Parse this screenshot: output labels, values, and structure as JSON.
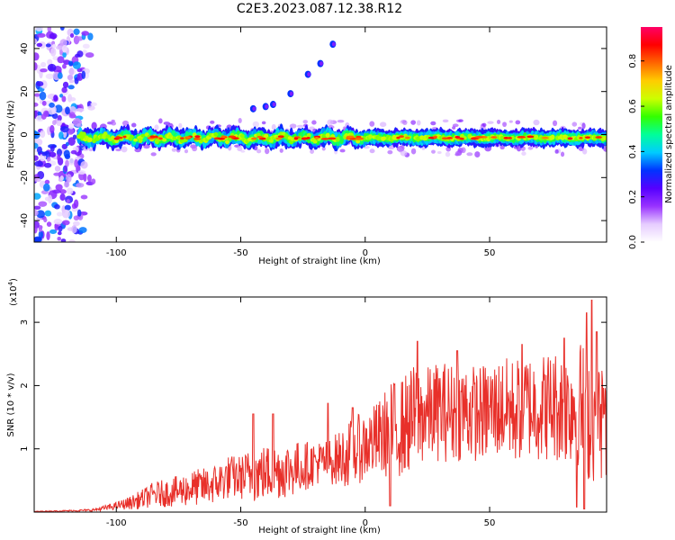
{
  "title": "C2E3.2023.087.12.38.R12",
  "chart_data": [
    {
      "type": "heatmap",
      "xlabel": "Height of straight line (km)",
      "ylabel": "Frequency (Hz)",
      "xlim": [
        -133,
        97
      ],
      "ylim": [
        -50,
        50
      ],
      "x_ticks": [
        -100,
        -50,
        0,
        50
      ],
      "y_ticks": [
        -40,
        -20,
        0,
        20,
        40
      ],
      "x_tick_labels": [
        "-100",
        "-50",
        "0",
        "50"
      ],
      "y_tick_labels": [
        "-40",
        "-20",
        "0",
        "20",
        "40"
      ],
      "grid": false,
      "colorbar": {
        "label": "Normalized spectral amplitude",
        "range": [
          0,
          0.95
        ],
        "ticks": [
          0.0,
          0.2,
          0.4,
          0.6,
          0.8
        ],
        "tick_labels": [
          "0.0",
          "0.2",
          "0.4",
          "0.6",
          "0.8"
        ],
        "colormap": [
          "#ffffff",
          "#e6ccff",
          "#9933ff",
          "#5500ff",
          "#0033ff",
          "#00ccff",
          "#00ff99",
          "#33ff00",
          "#ccff00",
          "#ffcc00",
          "#ff6600",
          "#ff0000",
          "#ff0066"
        ]
      },
      "features": {
        "center_band_frequency_hz": -1.5,
        "band_half_width_hz": 4,
        "band_x_range": [
          -115,
          97
        ],
        "noise_region_x_range": [
          -133,
          -108
        ],
        "rising_trace_points": [
          [
            -45,
            12
          ],
          [
            -40,
            13
          ],
          [
            -37,
            14
          ],
          [
            -30,
            19
          ],
          [
            -23,
            28
          ],
          [
            -18,
            33
          ],
          [
            -13,
            42
          ]
        ]
      }
    },
    {
      "type": "line",
      "xlabel": "Height of straight line (km)",
      "ylabel": "SNR (10 * v/v)",
      "y_multiplier": "(x10",
      "y_multiplier_exponent": "4",
      "xlim": [
        -133,
        97
      ],
      "ylim": [
        0,
        3.4
      ],
      "x_ticks": [
        -100,
        -50,
        0,
        50
      ],
      "y_ticks": [
        1,
        2,
        3
      ],
      "x_tick_labels": [
        "-100",
        "-50",
        "0",
        "50"
      ],
      "y_tick_labels": [
        "1",
        "2",
        "3"
      ],
      "grid": false,
      "line_color": "#e8302a",
      "series": [
        {
          "x": [
            -133,
            -120,
            -110,
            -105,
            -100,
            -95,
            -90,
            -85,
            -80,
            -75,
            -70,
            -65,
            -60,
            -55,
            -50,
            -45,
            -40,
            -35,
            -30,
            -25,
            -20,
            -15,
            -10,
            -5,
            0,
            5,
            10,
            15,
            20,
            25,
            30,
            35,
            40,
            45,
            50,
            55,
            60,
            65,
            70,
            75,
            80,
            85,
            90,
            97
          ],
          "values": [
            0.01,
            0.02,
            0.03,
            0.06,
            0.1,
            0.14,
            0.2,
            0.28,
            0.3,
            0.33,
            0.38,
            0.4,
            0.45,
            0.55,
            0.55,
            0.6,
            0.62,
            0.65,
            0.68,
            0.72,
            0.78,
            0.8,
            0.85,
            0.95,
            1.05,
            1.15,
            1.3,
            1.35,
            1.5,
            1.55,
            1.6,
            1.58,
            1.62,
            1.55,
            1.6,
            1.65,
            1.6,
            1.7,
            1.65,
            1.7,
            1.65,
            1.75,
            1.55,
            1.4
          ],
          "amplitude": [
            0.005,
            0.01,
            0.02,
            0.04,
            0.06,
            0.1,
            0.15,
            0.2,
            0.22,
            0.25,
            0.28,
            0.3,
            0.32,
            0.35,
            0.35,
            0.45,
            0.45,
            0.45,
            0.45,
            0.4,
            0.35,
            0.35,
            0.45,
            0.55,
            0.55,
            0.6,
            0.75,
            0.8,
            0.85,
            0.75,
            0.8,
            0.8,
            0.8,
            0.75,
            0.8,
            0.8,
            0.85,
            0.85,
            0.85,
            0.9,
            0.9,
            1.0,
            1.1,
            0.9
          ],
          "peaks": [
            [
              -45,
              1.55
            ],
            [
              -37,
              1.55
            ],
            [
              -15,
              1.72
            ],
            [
              -5,
              1.65
            ],
            [
              21,
              2.7
            ],
            [
              37,
              2.55
            ],
            [
              63,
              2.65
            ],
            [
              80,
              2.75
            ],
            [
              89,
              3.15
            ],
            [
              91,
              3.35
            ],
            [
              93,
              2.85
            ],
            [
              96,
              1.55
            ]
          ],
          "dips": [
            [
              10,
              0.1
            ],
            [
              85,
              0.08
            ],
            [
              88,
              0.05
            ]
          ]
        }
      ]
    }
  ]
}
